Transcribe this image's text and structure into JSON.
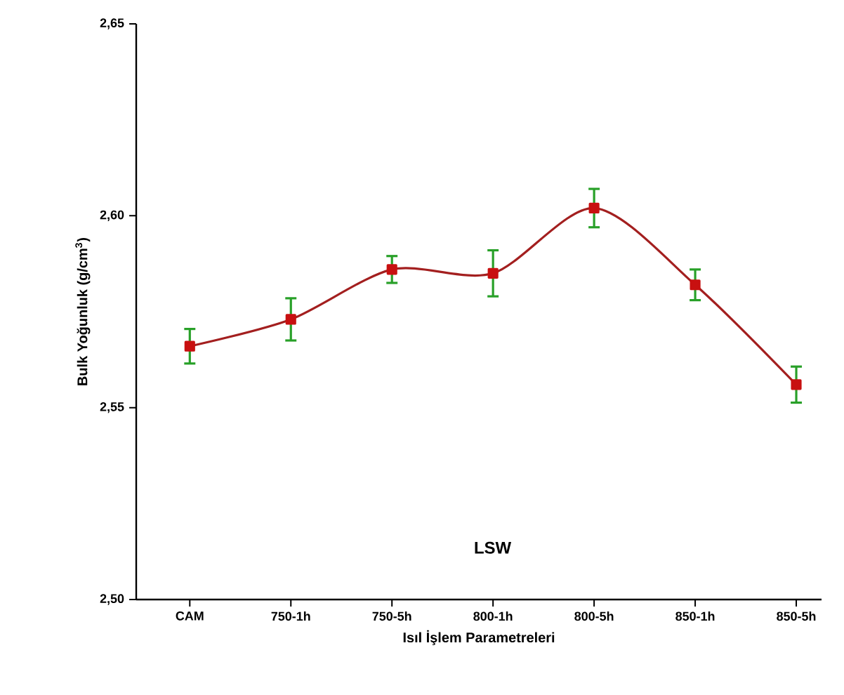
{
  "chart_data": {
    "type": "line",
    "xlabel": "Isıl İşlem Parametreleri",
    "ylabel": "Bulk Yoğunluk (g/cm$^{3}$)",
    "annotations": [
      "LSW"
    ],
    "categories": [
      "CAM",
      "750-1h",
      "750-5h",
      "800-1h",
      "800-5h",
      "850-1h",
      "850-5h"
    ],
    "series": [
      {
        "color": "#a31f1f",
        "values": [
          2.566,
          2.573,
          2.586,
          2.585,
          2.602,
          2.582,
          2.556
        ],
        "errors": [
          0.0045,
          0.0055,
          0.0035,
          0.006,
          0.005,
          0.004,
          0.0047
        ]
      }
    ],
    "ylim": [
      2.5,
      2.65
    ],
    "yticks": [
      {
        "value": 2.5,
        "label": "2,50"
      },
      {
        "value": 2.55,
        "label": "2,55"
      },
      {
        "value": 2.6,
        "label": "2,60"
      },
      {
        "value": 2.65,
        "label": "2,65"
      }
    ],
    "marker": "square",
    "line_style": "solid"
  }
}
